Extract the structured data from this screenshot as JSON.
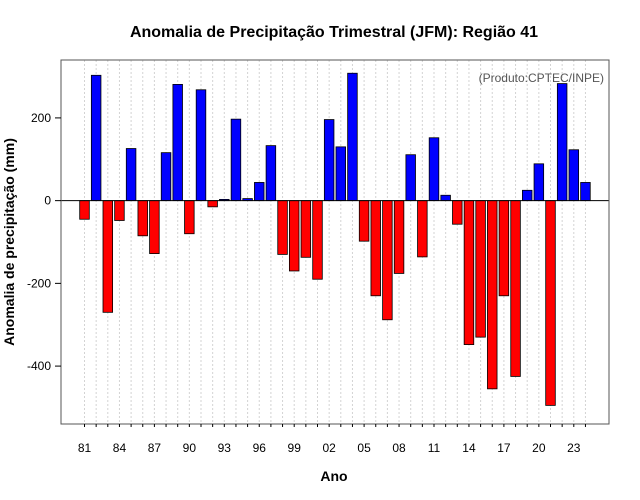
{
  "chart_data": {
    "type": "bar",
    "title": "Anomalia de Precipitação Trimestral (JFM): Região 41",
    "xlabel": "Ano",
    "ylabel": "Anomalia de precipitação (mm)",
    "annotation": "(Produto:CPTEC/INPE)",
    "ylim": [
      -540,
      340
    ],
    "yticks": [
      -400,
      -200,
      0,
      200
    ],
    "xtick_labels": [
      "81",
      "84",
      "87",
      "90",
      "93",
      "96",
      "99",
      "02",
      "05",
      "08",
      "11",
      "14",
      "17",
      "20",
      "23"
    ],
    "categories": [
      1981,
      1982,
      1983,
      1984,
      1985,
      1986,
      1987,
      1988,
      1989,
      1990,
      1991,
      1992,
      1993,
      1994,
      1995,
      1996,
      1997,
      1998,
      1999,
      2000,
      2001,
      2002,
      2003,
      2004,
      2005,
      2006,
      2007,
      2008,
      2009,
      2010,
      2011,
      2012,
      2013,
      2014,
      2015,
      2016,
      2017,
      2018,
      2019,
      2020,
      2021,
      2022,
      2023,
      2024
    ],
    "values": [
      -45,
      303,
      -270,
      -48,
      126,
      -85,
      -128,
      116,
      281,
      -80,
      268,
      -15,
      3,
      197,
      5,
      44,
      133,
      -130,
      -170,
      -137,
      -190,
      196,
      130,
      308,
      -98,
      -230,
      -288,
      -176,
      111,
      -136,
      152,
      13,
      -57,
      -348,
      -330,
      -455,
      -230,
      -425,
      25,
      89,
      -495,
      283,
      123,
      44
    ],
    "colors": {
      "positive": "#0000ff",
      "negative": "#ff0000"
    },
    "grid": true
  }
}
